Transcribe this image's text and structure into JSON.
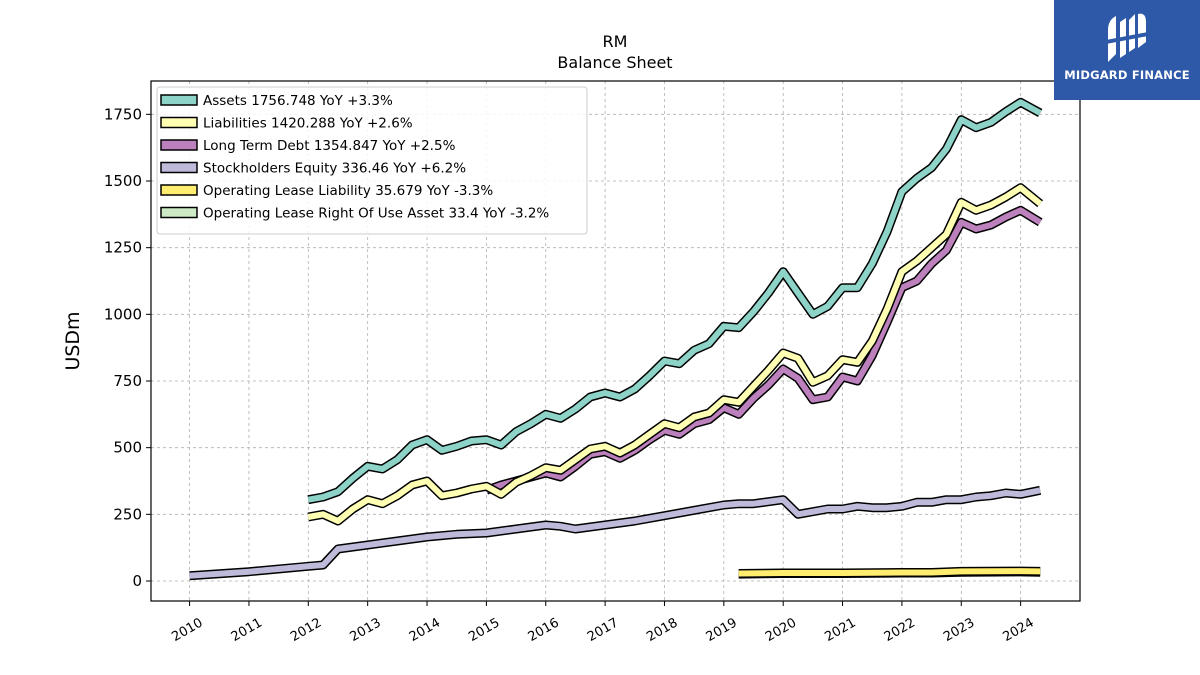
{
  "chart_data": {
    "type": "line",
    "title": "RM",
    "subtitle": "Balance  Sheet",
    "ylabel": "USDm",
    "xlabel": "",
    "ylim": [
      -75,
      1875
    ],
    "xlim": [
      2009.35,
      2025.0
    ],
    "yticks": [
      0,
      250,
      500,
      750,
      1000,
      1250,
      1500,
      1750
    ],
    "xticks": [
      "2010",
      "2011",
      "2012",
      "2013",
      "2014",
      "2015",
      "2016",
      "2017",
      "2018",
      "2019",
      "2020",
      "2021",
      "2022",
      "2023",
      "2024"
    ],
    "grid": true,
    "legend_position": "top-left",
    "series": [
      {
        "name": "Assets",
        "legend": "Assets  1756.748 YoY +3.3%",
        "color": "#8dd3c7",
        "points": [
          [
            2012.0,
            305
          ],
          [
            2012.25,
            315
          ],
          [
            2012.5,
            335
          ],
          [
            2012.75,
            385
          ],
          [
            2013.0,
            430
          ],
          [
            2013.25,
            420
          ],
          [
            2013.5,
            455
          ],
          [
            2013.75,
            510
          ],
          [
            2014.0,
            530
          ],
          [
            2014.25,
            490
          ],
          [
            2014.5,
            505
          ],
          [
            2014.75,
            525
          ],
          [
            2015.0,
            530
          ],
          [
            2015.25,
            510
          ],
          [
            2015.5,
            560
          ],
          [
            2015.75,
            590
          ],
          [
            2016.0,
            625
          ],
          [
            2016.25,
            610
          ],
          [
            2016.5,
            645
          ],
          [
            2016.75,
            690
          ],
          [
            2017.0,
            705
          ],
          [
            2017.25,
            690
          ],
          [
            2017.5,
            720
          ],
          [
            2017.75,
            770
          ],
          [
            2018.0,
            825
          ],
          [
            2018.25,
            815
          ],
          [
            2018.5,
            865
          ],
          [
            2018.75,
            890
          ],
          [
            2019.0,
            955
          ],
          [
            2019.25,
            950
          ],
          [
            2019.5,
            1010
          ],
          [
            2019.75,
            1080
          ],
          [
            2020.0,
            1160
          ],
          [
            2020.25,
            1080
          ],
          [
            2020.5,
            1000
          ],
          [
            2020.75,
            1030
          ],
          [
            2021.0,
            1100
          ],
          [
            2021.25,
            1100
          ],
          [
            2021.5,
            1190
          ],
          [
            2021.75,
            1310
          ],
          [
            2022.0,
            1460
          ],
          [
            2022.25,
            1510
          ],
          [
            2022.5,
            1550
          ],
          [
            2022.75,
            1620
          ],
          [
            2023.0,
            1730
          ],
          [
            2023.25,
            1700
          ],
          [
            2023.5,
            1720
          ],
          [
            2023.75,
            1760
          ],
          [
            2024.0,
            1795
          ],
          [
            2024.33,
            1755
          ]
        ]
      },
      {
        "name": "Liabilities",
        "legend": "Liabilities  1420.288 YoY +2.6%",
        "color": "#ffffb3",
        "points": [
          [
            2012.0,
            240
          ],
          [
            2012.25,
            250
          ],
          [
            2012.5,
            225
          ],
          [
            2012.75,
            270
          ],
          [
            2013.0,
            305
          ],
          [
            2013.25,
            290
          ],
          [
            2013.5,
            320
          ],
          [
            2013.75,
            360
          ],
          [
            2014.0,
            375
          ],
          [
            2014.25,
            320
          ],
          [
            2014.5,
            330
          ],
          [
            2014.75,
            345
          ],
          [
            2015.0,
            355
          ],
          [
            2015.25,
            325
          ],
          [
            2015.5,
            370
          ],
          [
            2015.75,
            395
          ],
          [
            2016.0,
            425
          ],
          [
            2016.25,
            415
          ],
          [
            2016.5,
            455
          ],
          [
            2016.75,
            495
          ],
          [
            2017.0,
            505
          ],
          [
            2017.25,
            480
          ],
          [
            2017.5,
            510
          ],
          [
            2017.75,
            550
          ],
          [
            2018.0,
            590
          ],
          [
            2018.25,
            575
          ],
          [
            2018.5,
            615
          ],
          [
            2018.75,
            630
          ],
          [
            2019.0,
            680
          ],
          [
            2019.25,
            670
          ],
          [
            2019.5,
            730
          ],
          [
            2019.75,
            790
          ],
          [
            2020.0,
            855
          ],
          [
            2020.25,
            835
          ],
          [
            2020.5,
            745
          ],
          [
            2020.75,
            770
          ],
          [
            2021.0,
            830
          ],
          [
            2021.25,
            820
          ],
          [
            2021.5,
            900
          ],
          [
            2021.75,
            1020
          ],
          [
            2022.0,
            1160
          ],
          [
            2022.25,
            1200
          ],
          [
            2022.5,
            1250
          ],
          [
            2022.75,
            1300
          ],
          [
            2023.0,
            1420
          ],
          [
            2023.25,
            1390
          ],
          [
            2023.5,
            1410
          ],
          [
            2023.75,
            1440
          ],
          [
            2024.0,
            1475
          ],
          [
            2024.33,
            1415
          ]
        ]
      },
      {
        "name": "Long Term Debt",
        "legend": "Long Term Debt  1354.847 YoY +2.5%",
        "color": "#bc80bd",
        "points": [
          [
            2015.0,
            340
          ],
          [
            2015.25,
            360
          ],
          [
            2015.5,
            375
          ],
          [
            2015.75,
            390
          ],
          [
            2016.0,
            405
          ],
          [
            2016.25,
            390
          ],
          [
            2016.5,
            430
          ],
          [
            2016.75,
            475
          ],
          [
            2017.0,
            485
          ],
          [
            2017.25,
            460
          ],
          [
            2017.5,
            490
          ],
          [
            2017.75,
            530
          ],
          [
            2018.0,
            565
          ],
          [
            2018.25,
            550
          ],
          [
            2018.5,
            590
          ],
          [
            2018.75,
            605
          ],
          [
            2019.0,
            650
          ],
          [
            2019.25,
            625
          ],
          [
            2019.5,
            685
          ],
          [
            2019.75,
            735
          ],
          [
            2020.0,
            795
          ],
          [
            2020.25,
            760
          ],
          [
            2020.5,
            680
          ],
          [
            2020.75,
            690
          ],
          [
            2021.0,
            765
          ],
          [
            2021.25,
            750
          ],
          [
            2021.5,
            845
          ],
          [
            2021.75,
            970
          ],
          [
            2022.0,
            1100
          ],
          [
            2022.25,
            1125
          ],
          [
            2022.5,
            1190
          ],
          [
            2022.75,
            1240
          ],
          [
            2023.0,
            1345
          ],
          [
            2023.25,
            1320
          ],
          [
            2023.5,
            1335
          ],
          [
            2023.75,
            1365
          ],
          [
            2024.0,
            1390
          ],
          [
            2024.33,
            1345
          ]
        ]
      },
      {
        "name": "Stockholders Equity",
        "legend": "Stockholders Equity  336.46 YoY +6.2%",
        "color": "#bebada",
        "points": [
          [
            2010.0,
            20
          ],
          [
            2011.0,
            35
          ],
          [
            2012.0,
            55
          ],
          [
            2012.25,
            60
          ],
          [
            2012.5,
            120
          ],
          [
            2013.0,
            135
          ],
          [
            2013.5,
            150
          ],
          [
            2014.0,
            165
          ],
          [
            2014.5,
            175
          ],
          [
            2015.0,
            180
          ],
          [
            2015.5,
            195
          ],
          [
            2016.0,
            210
          ],
          [
            2016.25,
            205
          ],
          [
            2016.5,
            195
          ],
          [
            2017.0,
            210
          ],
          [
            2017.5,
            225
          ],
          [
            2018.0,
            245
          ],
          [
            2018.5,
            265
          ],
          [
            2019.0,
            285
          ],
          [
            2019.25,
            290
          ],
          [
            2019.5,
            290
          ],
          [
            2020.0,
            305
          ],
          [
            2020.25,
            250
          ],
          [
            2020.75,
            270
          ],
          [
            2021.0,
            270
          ],
          [
            2021.25,
            280
          ],
          [
            2021.5,
            275
          ],
          [
            2021.75,
            275
          ],
          [
            2022.0,
            280
          ],
          [
            2022.25,
            295
          ],
          [
            2022.5,
            295
          ],
          [
            2022.75,
            305
          ],
          [
            2023.0,
            305
          ],
          [
            2023.25,
            315
          ],
          [
            2023.5,
            320
          ],
          [
            2023.75,
            330
          ],
          [
            2024.0,
            325
          ],
          [
            2024.33,
            340
          ]
        ]
      },
      {
        "name": "Operating Lease Liability",
        "legend": "Operating Lease Liability  35.679 YoY -3.3%",
        "color": "#ffed6f",
        "points": [
          [
            2019.25,
            28
          ],
          [
            2020.0,
            30
          ],
          [
            2021.0,
            30
          ],
          [
            2022.0,
            32
          ],
          [
            2022.5,
            32
          ],
          [
            2023.0,
            36
          ],
          [
            2024.0,
            37
          ],
          [
            2024.33,
            36
          ]
        ]
      },
      {
        "name": "Operating Lease Right Of Use Asset",
        "legend": "Operating Lease Right Of Use Asset  33.4 YoY -3.2%",
        "color": "#ccebc5",
        "points": [
          [
            2019.25,
            26
          ],
          [
            2020.0,
            28
          ],
          [
            2021.0,
            28
          ],
          [
            2022.0,
            30
          ],
          [
            2022.5,
            30
          ],
          [
            2023.0,
            33
          ],
          [
            2024.0,
            34
          ],
          [
            2024.33,
            33
          ]
        ]
      }
    ]
  },
  "branding": {
    "logo_text": "MIDGARD FINANCE"
  }
}
